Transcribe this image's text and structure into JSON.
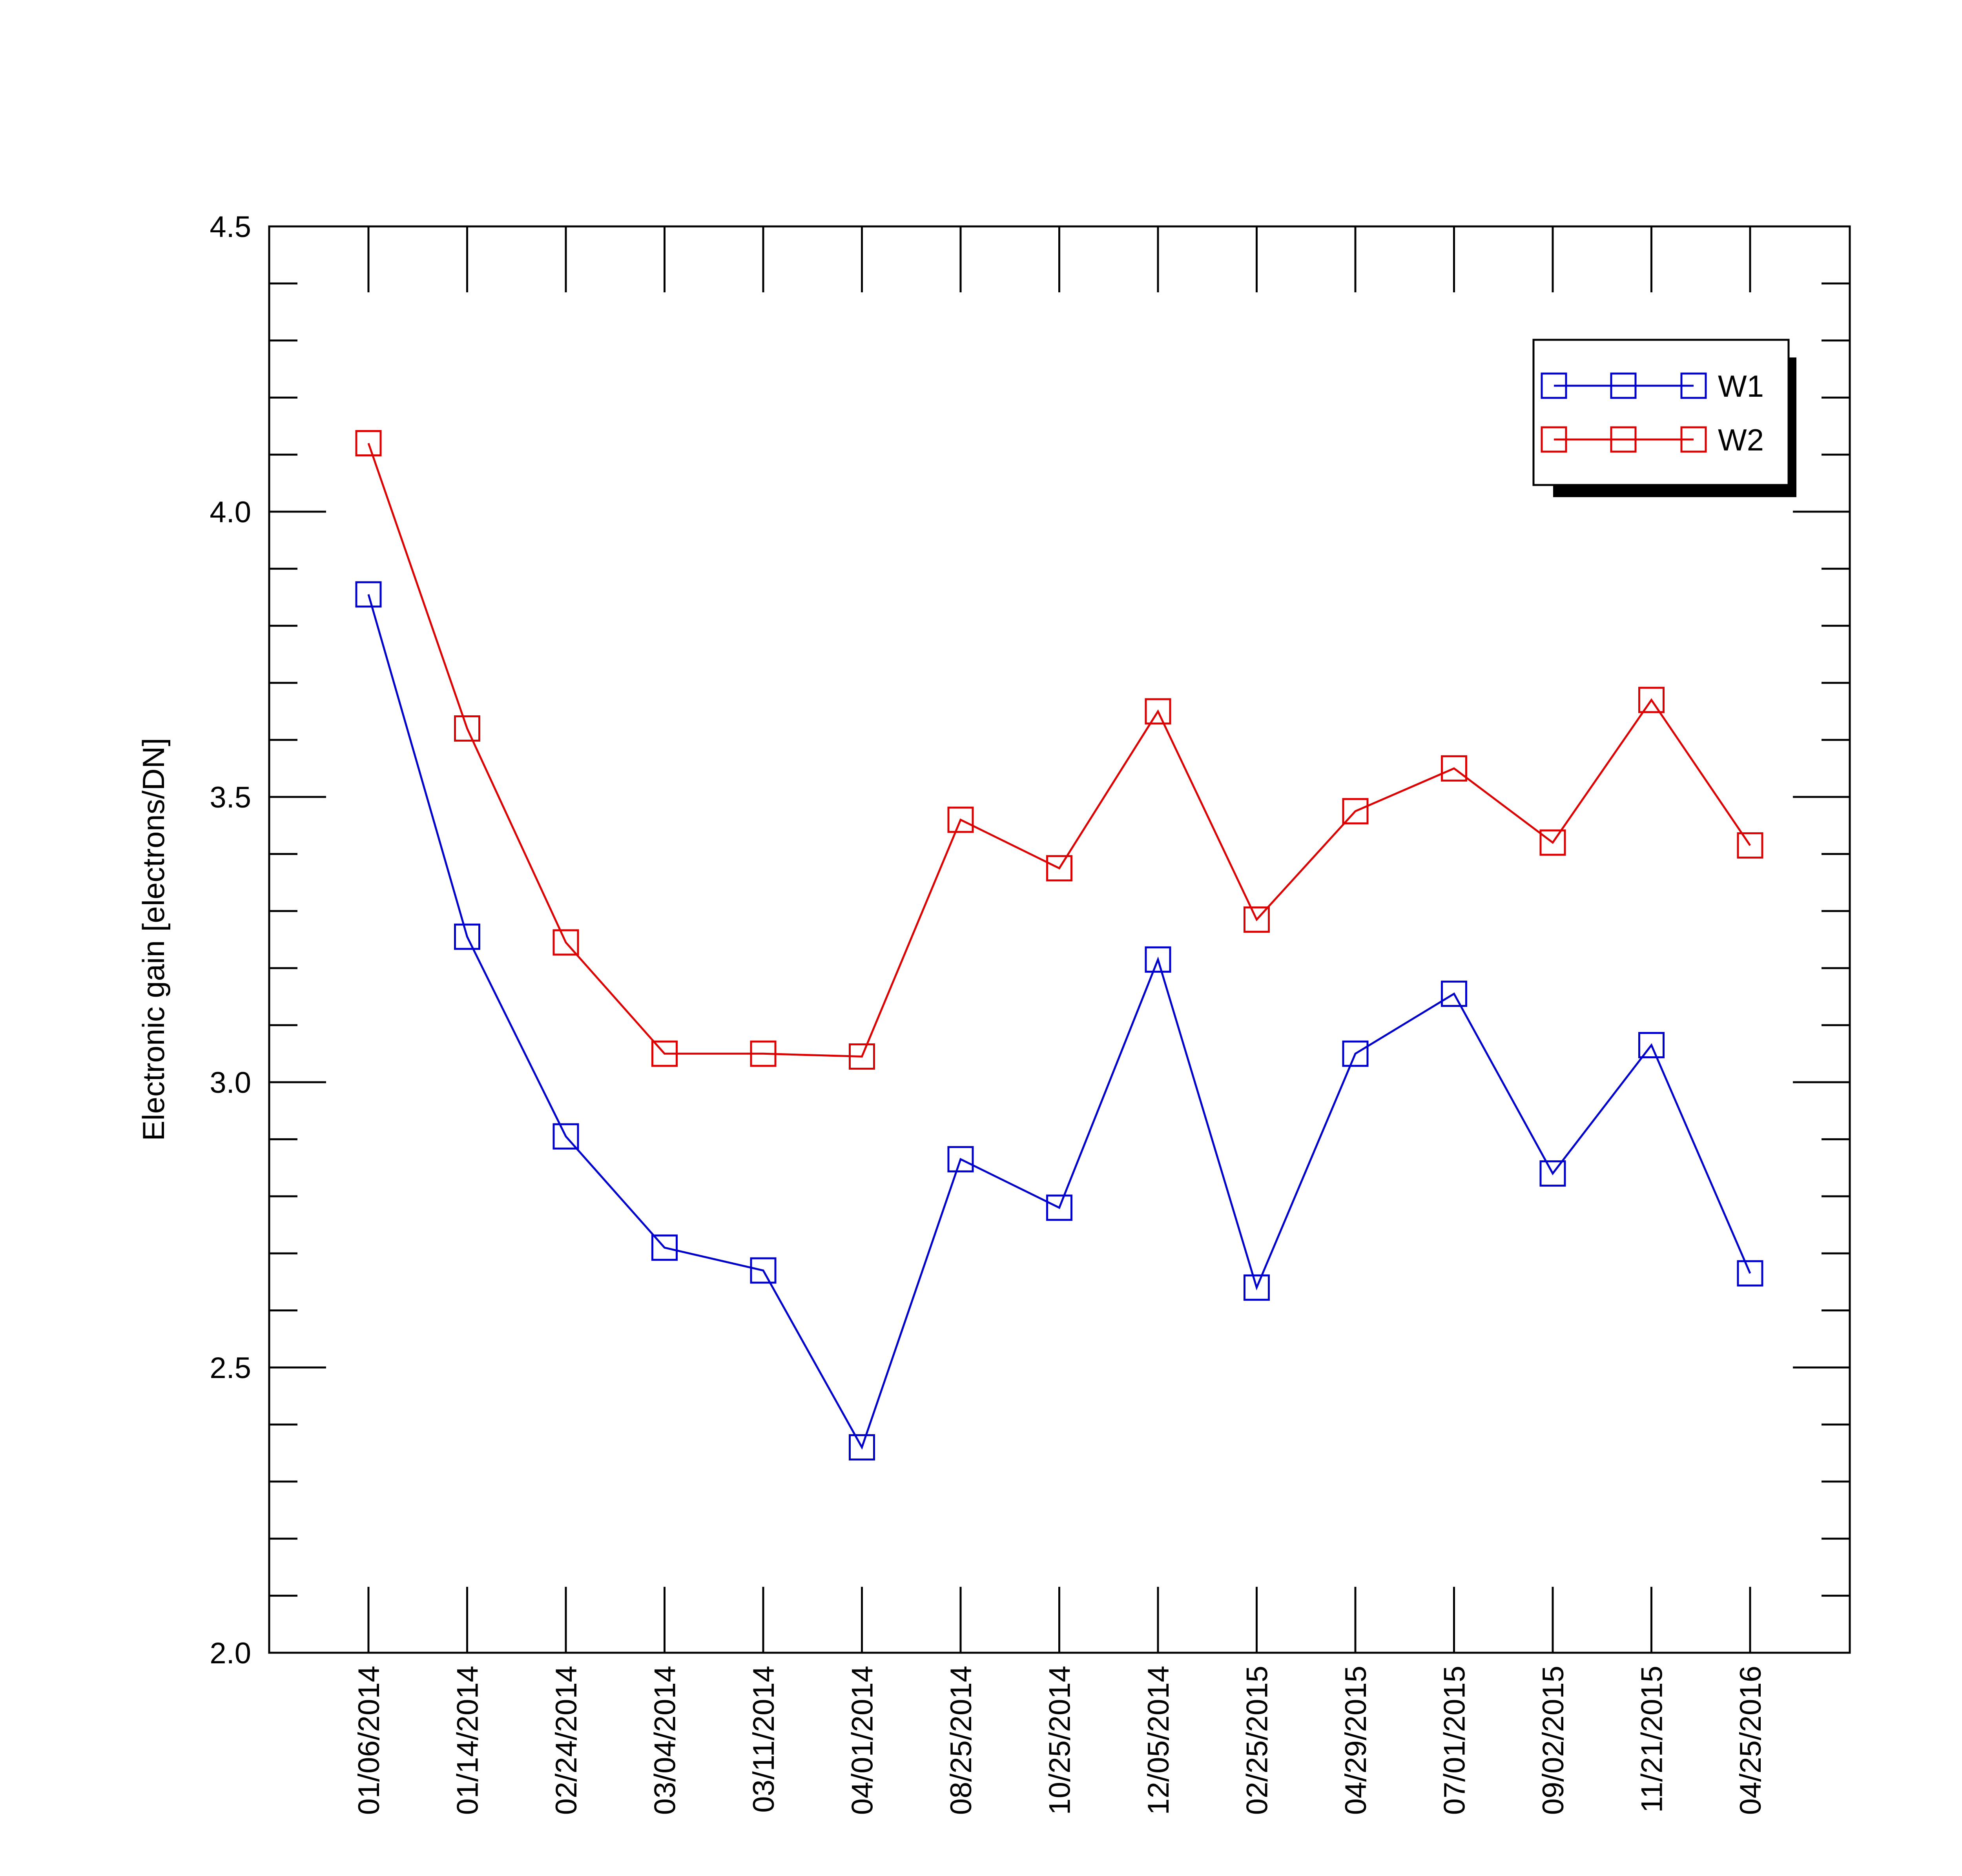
{
  "chart_data": {
    "type": "line",
    "title": "",
    "xlabel": "",
    "ylabel": "Electronic gain [electrons/DN]",
    "ylim": [
      2.0,
      4.5
    ],
    "yticks": [
      "2.0",
      "2.5",
      "3.0",
      "3.5",
      "4.0",
      "4.5"
    ],
    "categories": [
      "01/06/2014",
      "01/14/2014",
      "02/24/2014",
      "03/04/2014",
      "03/11/2014",
      "04/01/2014",
      "08/25/2014",
      "10/25/2014",
      "12/05/2014",
      "02/25/2015",
      "04/29/2015",
      "07/01/2015",
      "09/02/2015",
      "11/21/2015",
      "04/25/2016"
    ],
    "grid": false,
    "legend_position": "top-right",
    "series": [
      {
        "name": "W1",
        "color": "#0000cc",
        "marker": "square",
        "values": [
          3.855,
          3.255,
          2.905,
          2.71,
          2.67,
          2.36,
          2.865,
          2.78,
          3.215,
          2.64,
          3.05,
          3.155,
          2.84,
          3.065,
          2.665
        ]
      },
      {
        "name": "W2",
        "color": "#dd0000",
        "marker": "square",
        "values": [
          4.12,
          3.62,
          3.245,
          3.05,
          3.05,
          3.045,
          3.46,
          3.375,
          3.65,
          3.285,
          3.475,
          3.55,
          3.42,
          3.67,
          3.415
        ]
      }
    ]
  }
}
